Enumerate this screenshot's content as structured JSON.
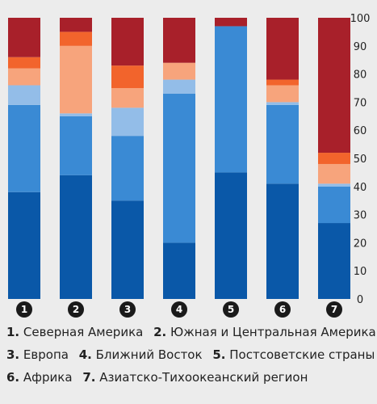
{
  "chart_data": {
    "type": "bar",
    "stacked": true,
    "orientation": "vertical",
    "categories": [
      "1",
      "2",
      "3",
      "4",
      "5",
      "6",
      "7"
    ],
    "ylim": [
      0,
      100
    ],
    "yticks": [
      0,
      10,
      20,
      30,
      40,
      50,
      60,
      70,
      80,
      90,
      100
    ],
    "y_axis_side": "right",
    "grid": false,
    "segment_colors": [
      "#0a58a8",
      "#3a8ad4",
      "#93bde8",
      "#f7a47c",
      "#f2642c",
      "#a8202a"
    ],
    "series": [
      {
        "values": [
          38,
          44,
          35,
          20,
          45,
          41,
          27
        ]
      },
      {
        "values": [
          31,
          21,
          23,
          53,
          52,
          28,
          13
        ]
      },
      {
        "values": [
          7,
          1,
          10,
          5,
          0,
          1,
          1
        ]
      },
      {
        "values": [
          6,
          24,
          7,
          6,
          0,
          6,
          7
        ]
      },
      {
        "values": [
          4,
          5,
          8,
          0,
          0,
          2,
          4
        ]
      },
      {
        "values": [
          14,
          5,
          17,
          16,
          3,
          22,
          48
        ]
      }
    ]
  },
  "legend": {
    "lines": [
      [
        {
          "num": "1.",
          "label": "Северная Америка"
        },
        {
          "num": "2.",
          "label": "Южная и Центральная Америка"
        }
      ],
      [
        {
          "num": "3.",
          "label": "Европа"
        },
        {
          "num": "4.",
          "label": "Ближний Восток"
        },
        {
          "num": "5.",
          "label": "Постсоветские страны"
        }
      ],
      [
        {
          "num": "6.",
          "label": "Африка"
        },
        {
          "num": "7.",
          "label": "Азиатско-Тихоокеанский регион"
        }
      ]
    ]
  }
}
